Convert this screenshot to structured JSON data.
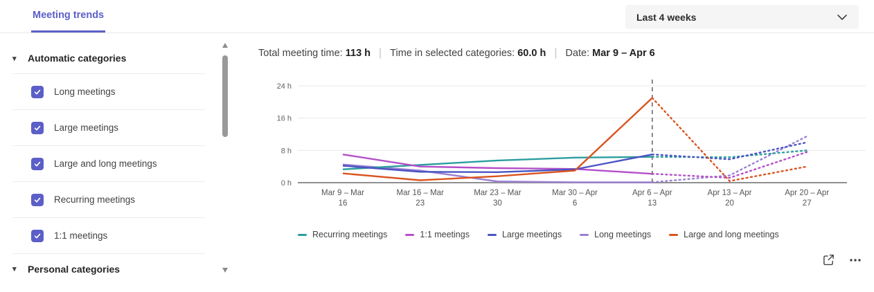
{
  "header": {
    "tab_label": "Meeting trends",
    "range_label": "Last 4 weeks"
  },
  "sidebar": {
    "sections": [
      {
        "title": "Automatic categories",
        "items": [
          {
            "label": "Long meetings",
            "checked": true
          },
          {
            "label": "Large meetings",
            "checked": true
          },
          {
            "label": "Large and long meetings",
            "checked": true
          },
          {
            "label": "Recurring meetings",
            "checked": true
          },
          {
            "label": "1:1 meetings",
            "checked": true
          }
        ]
      },
      {
        "title": "Personal categories",
        "items": []
      }
    ]
  },
  "summary": {
    "parts": [
      {
        "label": "Total meeting time:",
        "value": "113 h"
      },
      {
        "label": "Time in selected categories:",
        "value": "60.0 h"
      },
      {
        "label": "Date:",
        "value": "Mar 9 – Apr 6"
      }
    ]
  },
  "chart_data": {
    "type": "line",
    "x_categories": [
      [
        "Mar 9 – Mar",
        "16"
      ],
      [
        "Mar 16 – Mar",
        "23"
      ],
      [
        "Mar 23 – Mar",
        "30"
      ],
      [
        "Mar 30 – Apr",
        "6"
      ],
      [
        "Apr 6 – Apr",
        "13"
      ],
      [
        "Apr 13 – Apr",
        "20"
      ],
      [
        "Apr 20 – Apr",
        "27"
      ]
    ],
    "yticks": [
      {
        "label": "0 h",
        "value": 0
      },
      {
        "label": "8 h",
        "value": 8
      },
      {
        "label": "16 h",
        "value": 16
      },
      {
        "label": "24 h",
        "value": 24
      }
    ],
    "ylim": [
      0,
      24
    ],
    "unit": "hours",
    "grid": true,
    "legend_position": "bottom",
    "current_week_index": 4,
    "current_period_marker": "Apr 6 – Apr 13",
    "style_after_marker": "dotted (projected)",
    "series": [
      {
        "name": "Recurring meetings",
        "color": "#2b9d9f",
        "values": [
          3.3,
          4.4,
          5.5,
          6.2,
          6.4,
          6.3,
          8.0
        ]
      },
      {
        "name": "1:1 meetings",
        "color": "#b44fc8",
        "values": [
          7.0,
          4.0,
          3.6,
          3.4,
          2.2,
          1.2,
          7.6
        ]
      },
      {
        "name": "Large meetings",
        "color": "#4a54c2",
        "values": [
          4.2,
          2.7,
          2.6,
          3.3,
          7.0,
          5.8,
          10.0
        ]
      },
      {
        "name": "Long meetings",
        "color": "#9b7fd4",
        "values": [
          4.5,
          3.0,
          0.3,
          0.1,
          0.1,
          1.8,
          11.5
        ]
      },
      {
        "name": "Large and long meetings",
        "color": "#d9541e",
        "values": [
          2.3,
          0.6,
          1.6,
          3.0,
          21.0,
          0.4,
          4.0
        ]
      }
    ],
    "accent_color": "#5b5fc7"
  }
}
